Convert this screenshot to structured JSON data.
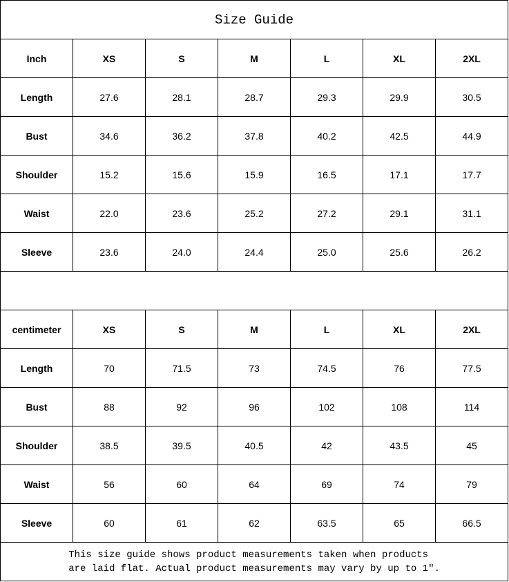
{
  "title": "Size Guide",
  "sizes": [
    "XS",
    "S",
    "M",
    "L",
    "XL",
    "2XL"
  ],
  "inch": {
    "unit_label": "Inch",
    "rows": [
      {
        "label": "Length",
        "values": [
          "27.6",
          "28.1",
          "28.7",
          "29.3",
          "29.9",
          "30.5"
        ]
      },
      {
        "label": "Bust",
        "values": [
          "34.6",
          "36.2",
          "37.8",
          "40.2",
          "42.5",
          "44.9"
        ]
      },
      {
        "label": "Shoulder",
        "values": [
          "15.2",
          "15.6",
          "15.9",
          "16.5",
          "17.1",
          "17.7"
        ]
      },
      {
        "label": "Waist",
        "values": [
          "22.0",
          "23.6",
          "25.2",
          "27.2",
          "29.1",
          "31.1"
        ]
      },
      {
        "label": "Sleeve",
        "values": [
          "23.6",
          "24.0",
          "24.4",
          "25.0",
          "25.6",
          "26.2"
        ]
      }
    ]
  },
  "cm": {
    "unit_label": "centimeter",
    "rows": [
      {
        "label": "Length",
        "values": [
          "70",
          "71.5",
          "73",
          "74.5",
          "76",
          "77.5"
        ]
      },
      {
        "label": "Bust",
        "values": [
          "88",
          "92",
          "96",
          "102",
          "108",
          "114"
        ]
      },
      {
        "label": "Shoulder",
        "values": [
          "38.5",
          "39.5",
          "40.5",
          "42",
          "43.5",
          "45"
        ]
      },
      {
        "label": "Waist",
        "values": [
          "56",
          "60",
          "64",
          "69",
          "74",
          "79"
        ]
      },
      {
        "label": "Sleeve",
        "values": [
          "60",
          "61",
          "62",
          "63.5",
          "65",
          "66.5"
        ]
      }
    ]
  },
  "footer": {
    "line1": "This size guide shows product measurements taken when products",
    "line2": "are laid flat. Actual product measurements may vary by up to 1″."
  }
}
